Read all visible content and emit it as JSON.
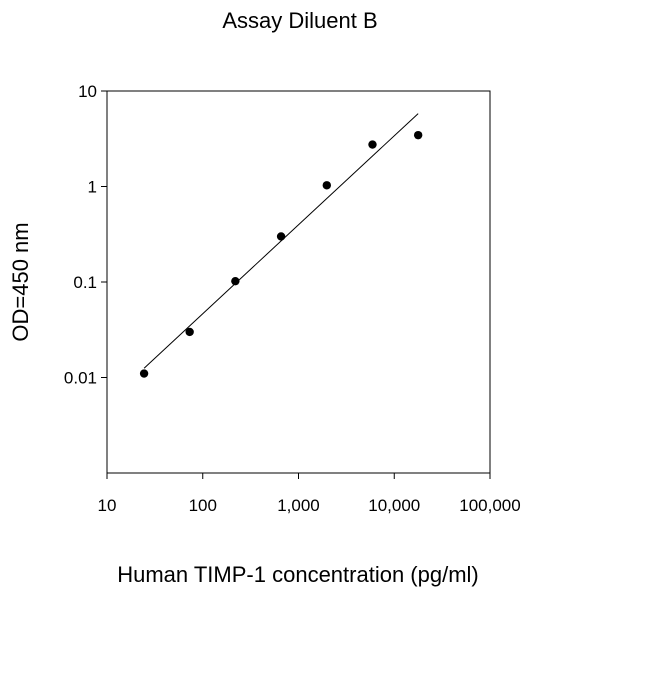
{
  "chart_data": {
    "type": "scatter",
    "title": "Assay Diluent  B",
    "xlabel": "Human TIMP-1 concentration (pg/ml)",
    "ylabel": "OD=450 nm",
    "x_scale": "log",
    "y_scale": "log",
    "xlim": [
      10,
      100000
    ],
    "ylim": [
      0.001,
      10
    ],
    "x_ticks": [
      10,
      100,
      1000,
      10000,
      100000
    ],
    "x_tick_labels": [
      "10",
      "100",
      "1,000",
      "10,000",
      "100,000"
    ],
    "y_ticks": [
      0.01,
      0.1,
      1,
      10
    ],
    "y_tick_labels": [
      "0.01",
      "0.1",
      "1",
      "10"
    ],
    "grid": false,
    "legend": "none",
    "series": [
      {
        "x": [
          24.4,
          73,
          219,
          658,
          1975,
          5925,
          17775
        ],
        "y": [
          0.011,
          0.03,
          0.102,
          0.3,
          1.03,
          2.75,
          3.45
        ]
      }
    ],
    "fit_line": {
      "x": [
        24.4,
        17775
      ],
      "y": [
        0.0125,
        5.8
      ]
    },
    "colors": {
      "points": "#000000",
      "line": "#000000",
      "axes": "#000000"
    }
  }
}
